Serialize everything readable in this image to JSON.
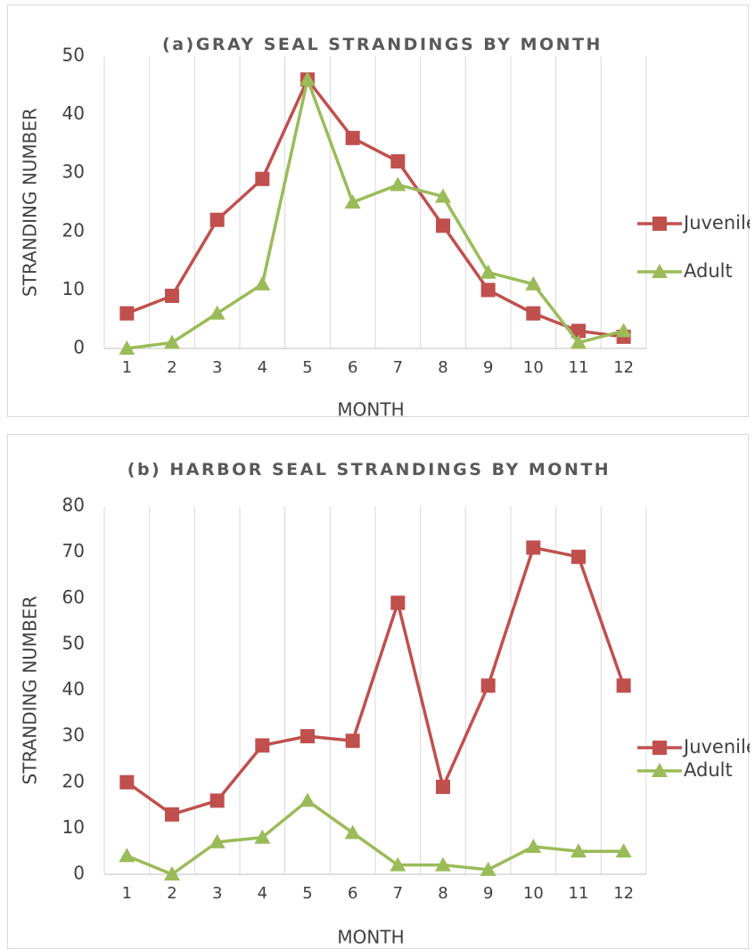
{
  "chart_data": [
    {
      "type": "line",
      "title": "(a)GRAY SEAL STRANDINGS BY MONTH",
      "x_label": "MONTH",
      "y_label": "STRANDING NUMBER",
      "categories": [
        1,
        2,
        3,
        4,
        5,
        6,
        7,
        8,
        9,
        10,
        11,
        12
      ],
      "series": [
        {
          "name": "Juvenile",
          "color": "#c0504d",
          "marker": "square",
          "values": [
            6,
            9,
            22,
            29,
            46,
            36,
            32,
            21,
            10,
            6,
            3,
            2
          ]
        },
        {
          "name": "Adult",
          "color": "#9bbb59",
          "marker": "triangle",
          "values": [
            0,
            1,
            6,
            11,
            46,
            25,
            28,
            26,
            13,
            11,
            1,
            3
          ]
        }
      ],
      "ylim": [
        0,
        50
      ],
      "yticks": [
        0,
        10,
        20,
        30,
        40,
        50
      ],
      "grid": true,
      "legend": "right"
    },
    {
      "type": "line",
      "title": "(b) HARBOR SEAL STRANDINGS BY MONTH",
      "x_label": "MONTH",
      "y_label": "STRANDING NUMBER",
      "categories": [
        1,
        2,
        3,
        4,
        5,
        6,
        7,
        8,
        9,
        10,
        11,
        12
      ],
      "series": [
        {
          "name": "Juvenile",
          "color": "#c0504d",
          "marker": "square",
          "values": [
            20,
            13,
            16,
            28,
            30,
            29,
            59,
            19,
            41,
            71,
            69,
            41
          ]
        },
        {
          "name": "Adult",
          "color": "#9bbb59",
          "marker": "triangle",
          "values": [
            4,
            0,
            7,
            8,
            16,
            9,
            2,
            2,
            1,
            6,
            5,
            5
          ]
        }
      ],
      "ylim": [
        0,
        80
      ],
      "yticks": [
        0,
        10,
        20,
        30,
        40,
        50,
        60,
        70,
        80
      ],
      "grid": true,
      "legend": "right"
    }
  ]
}
